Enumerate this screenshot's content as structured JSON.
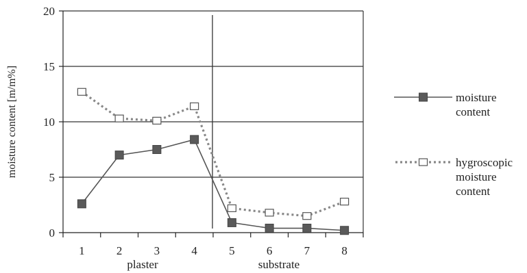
{
  "chart_data": {
    "type": "line",
    "x": [
      1,
      2,
      3,
      4,
      5,
      6,
      7,
      8
    ],
    "series": [
      {
        "name": "moisture content",
        "values": [
          2.6,
          7.0,
          7.5,
          8.4,
          0.9,
          0.4,
          0.4,
          0.2
        ],
        "color": "#555555",
        "marker": "filled-square",
        "line": "solid"
      },
      {
        "name": "hygroscopic moisture content",
        "values": [
          12.7,
          10.3,
          10.1,
          11.4,
          2.2,
          1.8,
          1.5,
          2.8
        ],
        "color": "#888888",
        "marker": "open-square",
        "line": "dotted"
      }
    ],
    "ylabel": "moisture content [m/m%]",
    "ylim": [
      0,
      20
    ],
    "yticks": [
      0,
      5,
      10,
      15,
      20
    ],
    "xticks": [
      1,
      2,
      3,
      4,
      5,
      6,
      7,
      8
    ],
    "grid": "horizontal",
    "regions": [
      {
        "label": "plaster",
        "from": 1,
        "to": 4
      },
      {
        "label": "substrate",
        "from": 5,
        "to": 8
      }
    ],
    "divider_between": [
      4,
      5
    ],
    "legend": {
      "placement": "right",
      "entries": [
        {
          "lines": [
            "moisture",
            "content"
          ]
        },
        {
          "lines": [
            "hygroscopic",
            "moisture",
            "content"
          ]
        }
      ]
    }
  }
}
